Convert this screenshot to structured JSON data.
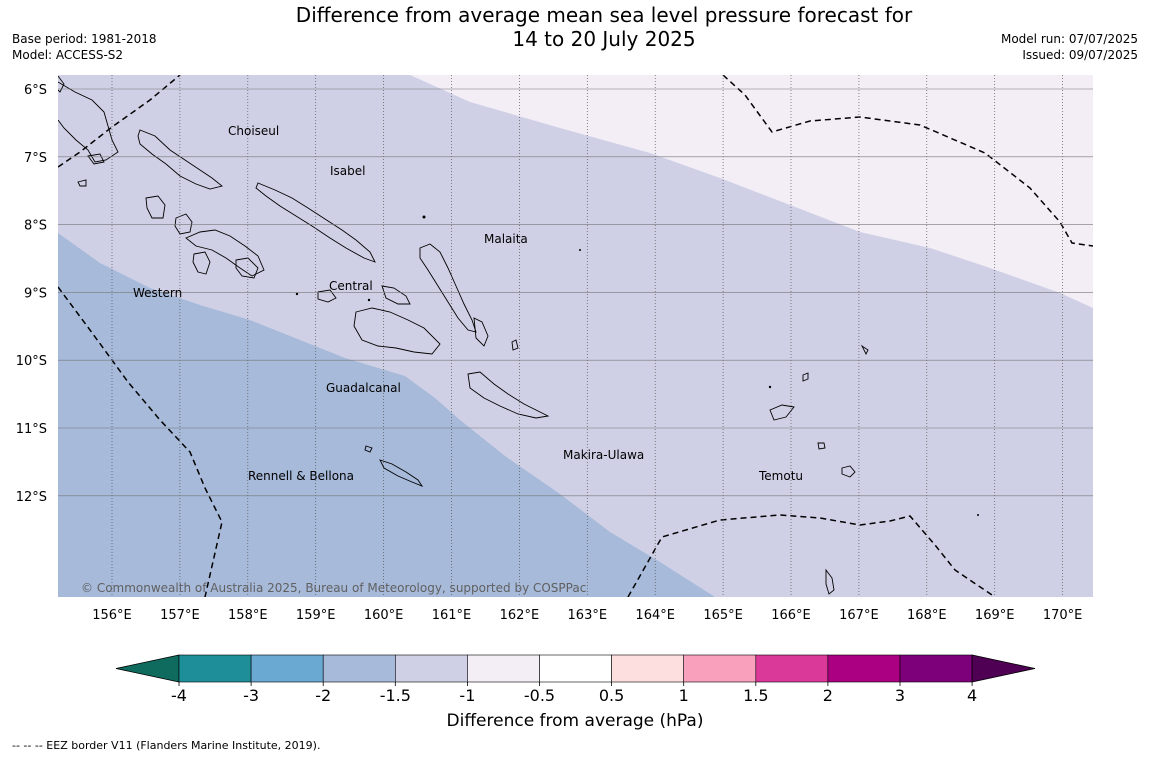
{
  "title_line1": "Difference from average mean sea level pressure forecast for",
  "title_line2": "14 to 20 July 2025",
  "base_period": "Base period: 1981-2018",
  "model": "Model: ACCESS-S2",
  "model_run": "Model run: 07/07/2025",
  "issued": "Issued: 09/07/2025",
  "lat_labels": [
    "6°S",
    "7°S",
    "8°S",
    "9°S",
    "10°S",
    "11°S",
    "12°S"
  ],
  "lon_labels": [
    "156°E",
    "157°E",
    "158°E",
    "159°E",
    "160°E",
    "161°E",
    "162°E",
    "163°E",
    "164°E",
    "165°E",
    "166°E",
    "167°E",
    "168°E",
    "169°E",
    "170°E"
  ],
  "places": {
    "choiseul": "Choiseul",
    "isabel": "Isabel",
    "malaita": "Malaita",
    "western": "Western",
    "central": "Central",
    "guadalcanal": "Guadalcanal",
    "makira_ulawa": "Makira-Ulawa",
    "temotu": "Temotu",
    "rennell_bellona": "Rennell & Bellona"
  },
  "copyright": "© Commonwealth of Australia 2025, Bureau of Meteorology, supported by COSPPac",
  "colorbar": {
    "tick_labels": [
      "-4",
      "-3",
      "-2",
      "-1.5",
      "-1",
      "-0.5",
      "0.5",
      "1",
      "1.5",
      "2",
      "3",
      "4"
    ],
    "colors": [
      "#0f6b5e",
      "#1e8f99",
      "#69a9d2",
      "#a7bada",
      "#cfd0e5",
      "#f3edf6",
      "#ffffff",
      "#fedfe0",
      "#f8a0bc",
      "#db3999",
      "#ac0082",
      "#7d007a",
      "#4f0055"
    ],
    "title": "Difference from average (hPa)"
  },
  "footnote": "--  --  -- EEZ border V11 (Flanders Marine Institute, 2019)."
}
